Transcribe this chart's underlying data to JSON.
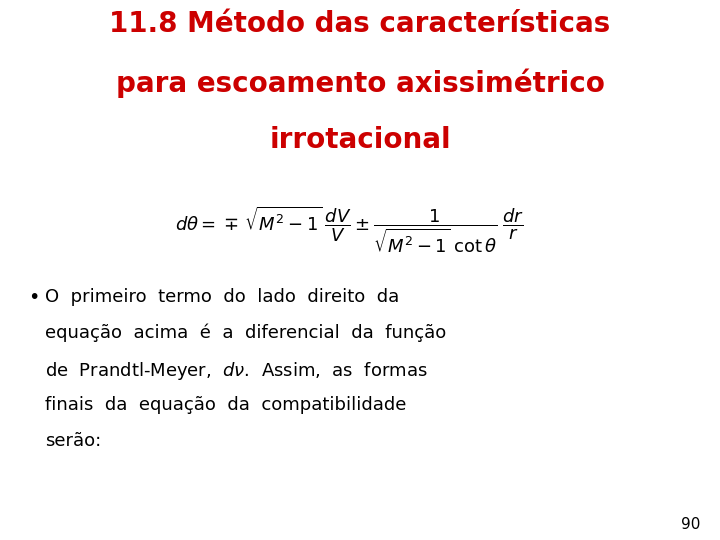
{
  "background_color": "#ffffff",
  "title_line1": "11.8 Método das características",
  "title_line2": "para escoamento axissimétrico",
  "title_line3": "irrotacional",
  "title_color": "#cc0000",
  "title_fontsize": 20,
  "equation_fontsize": 13,
  "bullet_text_lines": [
    "O  primeiro  termo  do  lado  direito  da",
    "equação  acima  é  a  diferencial  da  função",
    "de  Prandtl-Meyer,  $d\\nu$.  Assim,  as  formas",
    "finais  da  equação  da  compatibilidade",
    "serão:"
  ],
  "bullet_fontsize": 13,
  "text_color": "#000000",
  "page_number": "90",
  "page_number_fontsize": 11
}
